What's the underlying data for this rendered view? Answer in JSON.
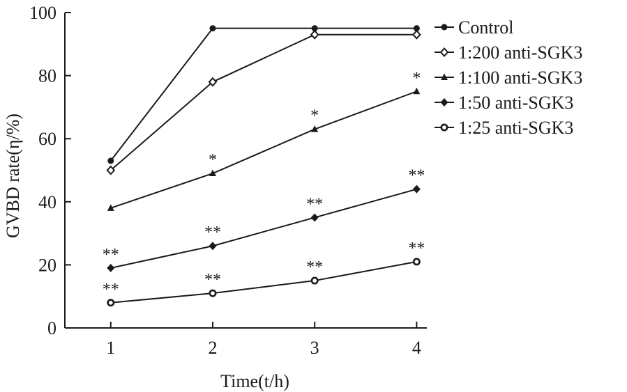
{
  "chart_data": {
    "type": "line",
    "x": [
      1,
      2,
      3,
      4
    ],
    "xlabel": "Time(t/h)",
    "ylabel": "GVBD rate(η/%)",
    "xlim": [
      0.55,
      4.1
    ],
    "ylim": [
      0,
      100
    ],
    "xticks": [
      "1",
      "2",
      "3",
      "4"
    ],
    "yticks": [
      "0",
      "20",
      "40",
      "60",
      "80",
      "100"
    ],
    "grid": false,
    "legend_position": "top-right",
    "series": [
      {
        "name": "Control",
        "marker": "filled-circle",
        "values": [
          53,
          95,
          95,
          95
        ],
        "significance": [
          "",
          "",
          "",
          ""
        ]
      },
      {
        "name": "1:200 anti-SGK3",
        "marker": "open-diamond",
        "values": [
          50,
          78,
          93,
          93
        ],
        "significance": [
          "",
          "",
          "",
          ""
        ]
      },
      {
        "name": "1:100 anti-SGK3",
        "marker": "filled-triangle",
        "values": [
          38,
          49,
          63,
          75
        ],
        "significance": [
          "",
          "*",
          "*",
          "*"
        ]
      },
      {
        "name": "1:50 anti-SGK3",
        "marker": "filled-diamond",
        "values": [
          19,
          26,
          35,
          44
        ],
        "significance": [
          "**",
          "**",
          "**",
          "**"
        ]
      },
      {
        "name": "1:25 anti-SGK3",
        "marker": "ring-circle",
        "values": [
          8,
          11,
          15,
          21
        ],
        "significance": [
          "**",
          "**",
          "**",
          "**"
        ]
      }
    ]
  }
}
